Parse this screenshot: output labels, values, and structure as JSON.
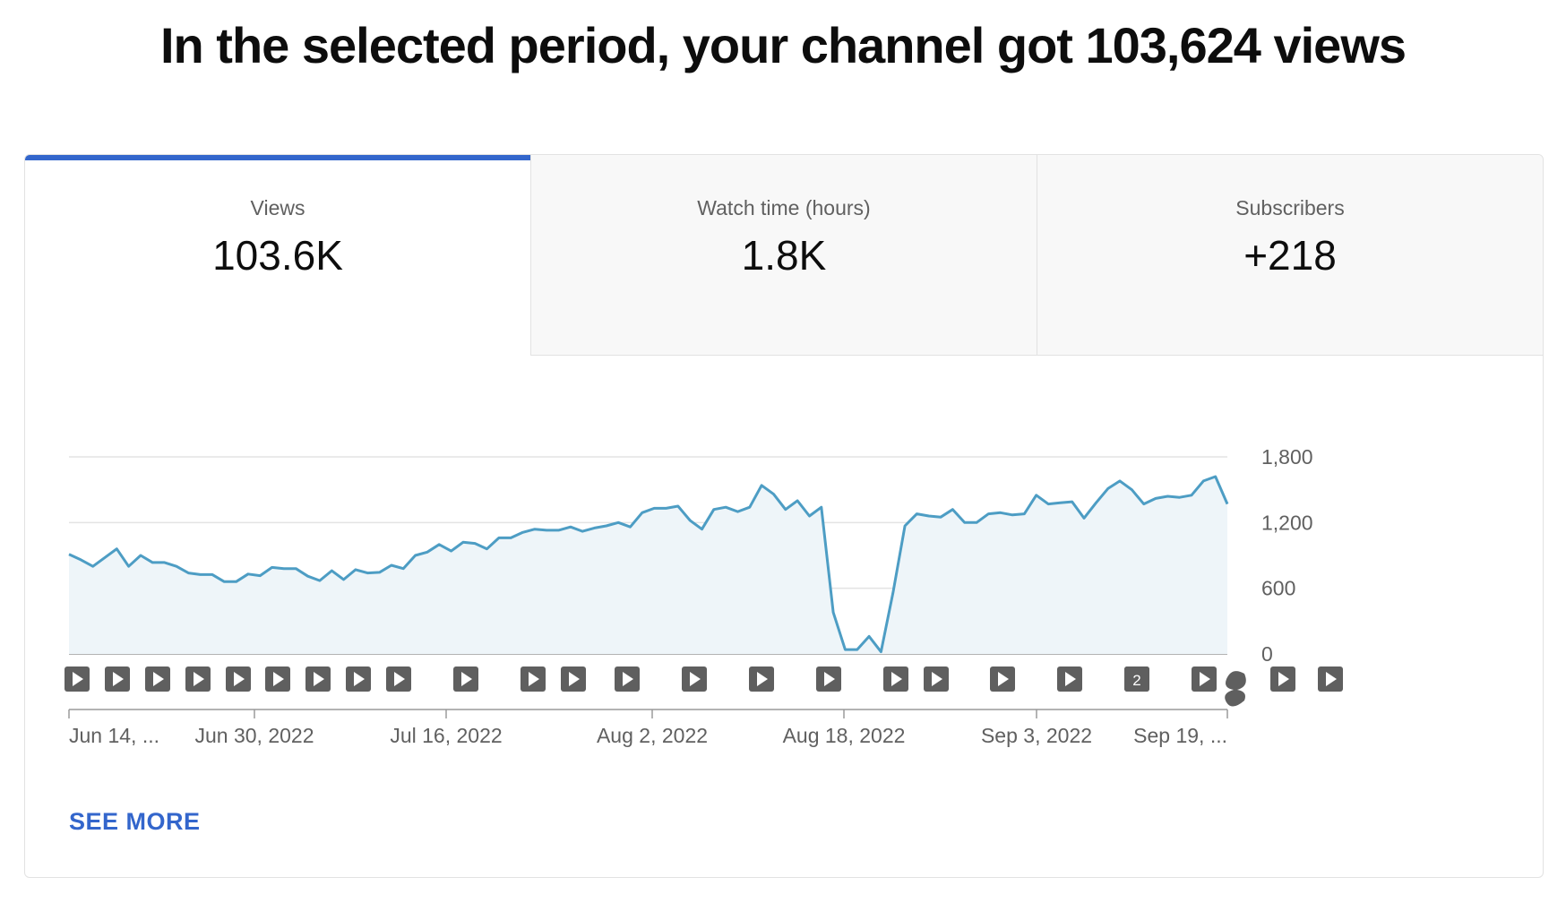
{
  "headline": "In the selected period, your channel got 103,624 views",
  "tabs": [
    {
      "label": "Views",
      "value": "103.6K",
      "active": true
    },
    {
      "label": "Watch time (hours)",
      "value": "1.8K",
      "active": false
    },
    {
      "label": "Subscribers",
      "value": "+218",
      "active": false
    }
  ],
  "see_more": "SEE MORE",
  "colors": {
    "accent": "#3366cc",
    "line": "#4d9dc4",
    "area": "#eef5f9",
    "marker": "#5f5f5f"
  },
  "chart_data": {
    "type": "area",
    "series": [
      {
        "values": [
          910,
          860,
          800,
          880,
          960,
          800,
          900,
          835,
          835,
          800,
          740,
          725,
          725,
          660,
          660,
          730,
          715,
          790,
          780,
          780,
          710,
          670,
          760,
          680,
          770,
          740,
          745,
          810,
          780,
          900,
          930,
          1000,
          940,
          1020,
          1010,
          960,
          1060,
          1060,
          1110,
          1140,
          1130,
          1130,
          1160,
          1120,
          1150,
          1170,
          1200,
          1160,
          1290,
          1330,
          1330,
          1350,
          1220,
          1140,
          1320,
          1340,
          1300,
          1340,
          1540,
          1460,
          1320,
          1400,
          1260,
          1340,
          380,
          40,
          40,
          160,
          20,
          560,
          1170,
          1280,
          1260,
          1250,
          1320,
          1200,
          1200,
          1280,
          1290,
          1270,
          1280,
          1450,
          1370,
          1380,
          1390,
          1240,
          1380,
          1510,
          1580,
          1500,
          1370,
          1420,
          1440,
          1430,
          1450,
          1580,
          1620,
          1370
        ]
      }
    ],
    "x_tick_labels": [
      "Jun 14, ...",
      "Jun 30, 2022",
      "Jul 16, 2022",
      "Aug 2, 2022",
      "Aug 18, 2022",
      "Sep 3, 2022",
      "Sep 19, ..."
    ],
    "y_tick_labels": [
      "1,800",
      "1,200",
      "600",
      "0"
    ],
    "ylim": [
      0,
      1800
    ],
    "grid": true,
    "markers": [
      {
        "icon": "play-icon"
      },
      {
        "icon": "play-icon"
      },
      {
        "icon": "play-icon"
      },
      {
        "icon": "play-icon"
      },
      {
        "icon": "play-icon"
      },
      {
        "icon": "play-icon"
      },
      {
        "icon": "play-icon"
      },
      {
        "icon": "play-icon"
      },
      {
        "icon": "play-icon"
      },
      {
        "icon": "play-icon"
      },
      {
        "icon": "play-icon"
      },
      {
        "icon": "play-icon"
      },
      {
        "icon": "play-icon"
      },
      {
        "icon": "play-icon"
      },
      {
        "icon": "play-icon"
      },
      {
        "icon": "play-icon"
      },
      {
        "icon": "play-icon"
      },
      {
        "icon": "play-icon"
      },
      {
        "icon": "play-icon"
      },
      {
        "icon": "play-icon"
      },
      {
        "icon": "play-icon"
      },
      {
        "icon": "count-badge",
        "count": "2"
      },
      {
        "icon": "play-icon"
      },
      {
        "icon": "shorts-icon"
      },
      {
        "icon": "play-icon"
      },
      {
        "icon": "play-icon"
      }
    ]
  }
}
